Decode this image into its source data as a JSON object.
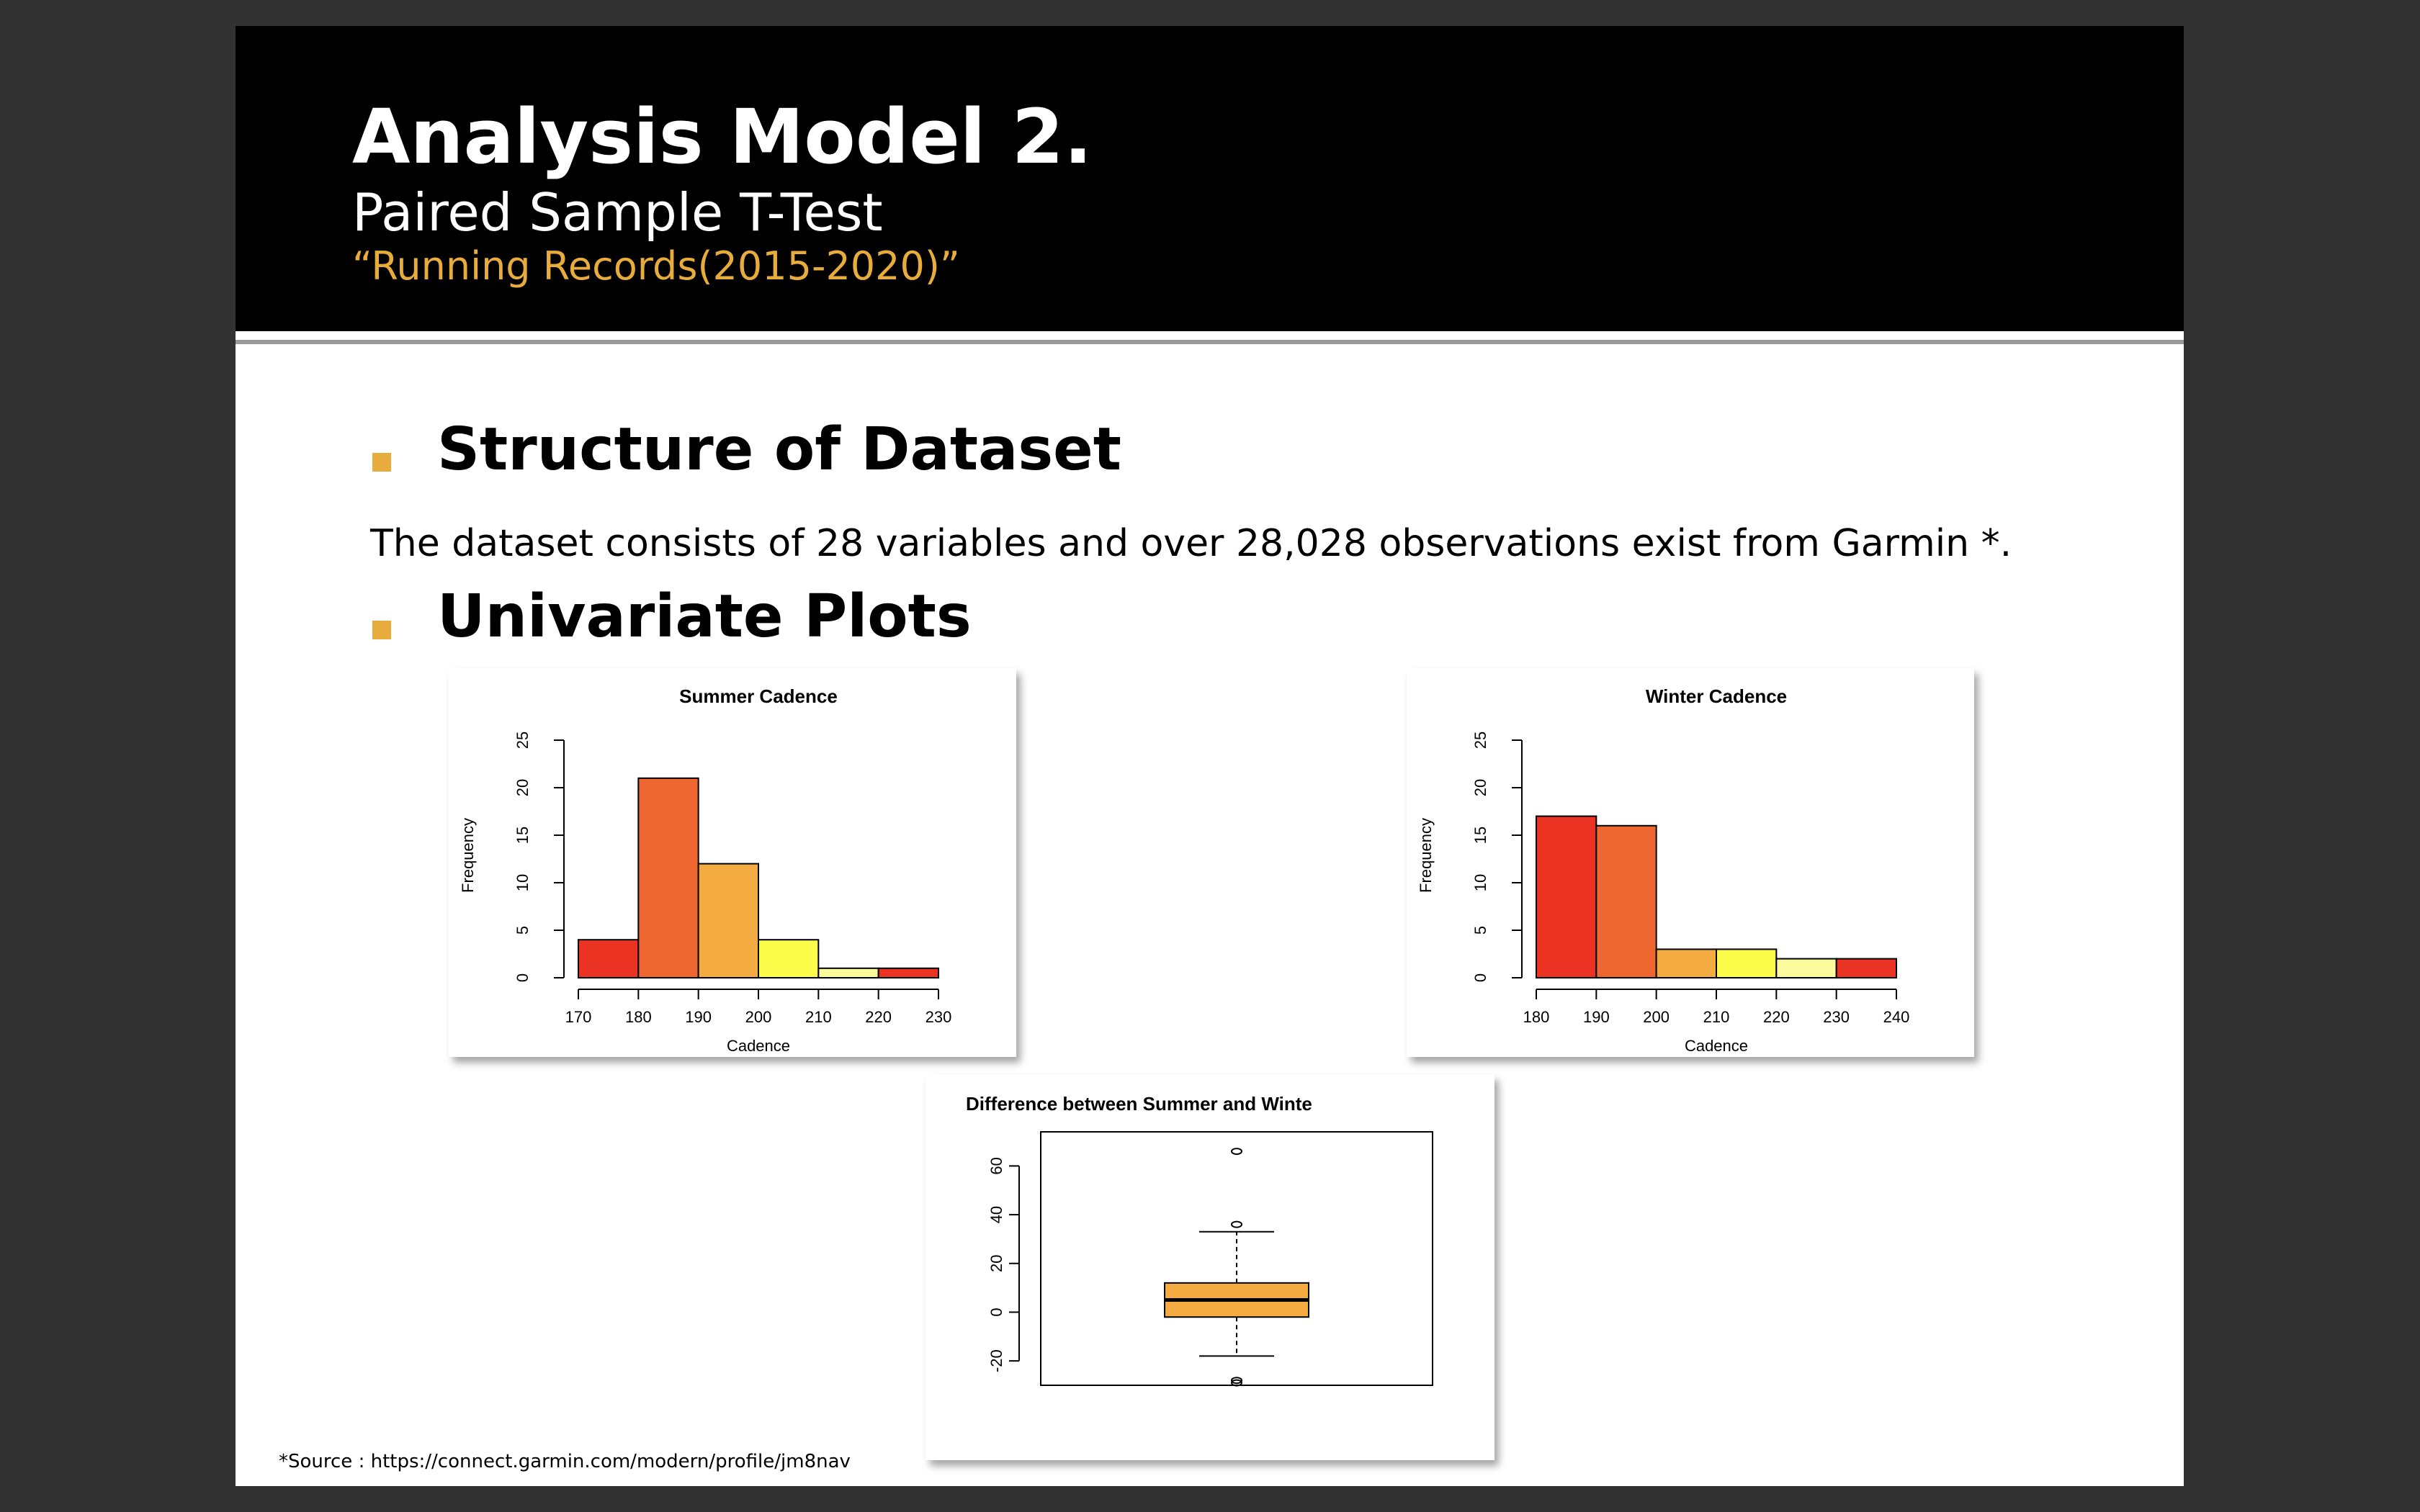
{
  "slide": {
    "title": "Analysis Model 2.",
    "subtitle": "Paired Sample T-Test",
    "quote": "“Running Records(2015-2020)”"
  },
  "sections": [
    {
      "heading": "Structure of Dataset",
      "text": "The dataset consists of 28 variables and over 28,028 observations exist from Garmin *."
    },
    {
      "heading": "Univariate Plots"
    }
  ],
  "footer": {
    "source": "*Source : https://connect.garmin.com/modern/profile/jm8nav"
  },
  "colors": {
    "background": "#323232",
    "header": "#000000",
    "accent": "#e8ac3c",
    "bar_colors": [
      "#ea3323",
      "#ee6630",
      "#f3ab42",
      "#fcfc4b",
      "#fcfc9d",
      "#ea3323"
    ]
  },
  "chart_data": [
    {
      "type": "bar",
      "title": "Summer Cadence",
      "xlabel": "Cadence",
      "ylabel": "Frequency",
      "bins": [
        [
          170,
          180
        ],
        [
          180,
          190
        ],
        [
          190,
          200
        ],
        [
          200,
          210
        ],
        [
          210,
          220
        ],
        [
          220,
          230
        ]
      ],
      "values": [
        4,
        21,
        12,
        4,
        1,
        1
      ],
      "x_ticks": [
        170,
        180,
        190,
        200,
        210,
        220,
        230
      ],
      "y_ticks": [
        0,
        5,
        10,
        15,
        20,
        25
      ],
      "xlim": [
        170,
        230
      ],
      "ylim": [
        0,
        25
      ]
    },
    {
      "type": "bar",
      "title": "Winter Cadence",
      "xlabel": "Cadence",
      "ylabel": "Frequency",
      "bins": [
        [
          180,
          190
        ],
        [
          190,
          200
        ],
        [
          200,
          210
        ],
        [
          210,
          220
        ],
        [
          220,
          230
        ],
        [
          230,
          240
        ]
      ],
      "values": [
        17,
        16,
        3,
        3,
        2,
        2
      ],
      "x_ticks": [
        180,
        190,
        200,
        210,
        220,
        230,
        240
      ],
      "y_ticks": [
        0,
        5,
        10,
        15,
        20,
        25
      ],
      "xlim": [
        180,
        240
      ],
      "ylim": [
        0,
        25
      ]
    },
    {
      "type": "box",
      "title": "Difference between Summer and Winte",
      "y_ticks": [
        -20,
        0,
        20,
        40,
        60
      ],
      "ylim": [
        -30,
        74
      ],
      "whisker_low": -18,
      "q1": -2,
      "median": 5,
      "q3": 12,
      "whisker_high": 33,
      "outliers": [
        66,
        36,
        -28,
        -29
      ],
      "box_color": "#f3ab42"
    }
  ]
}
